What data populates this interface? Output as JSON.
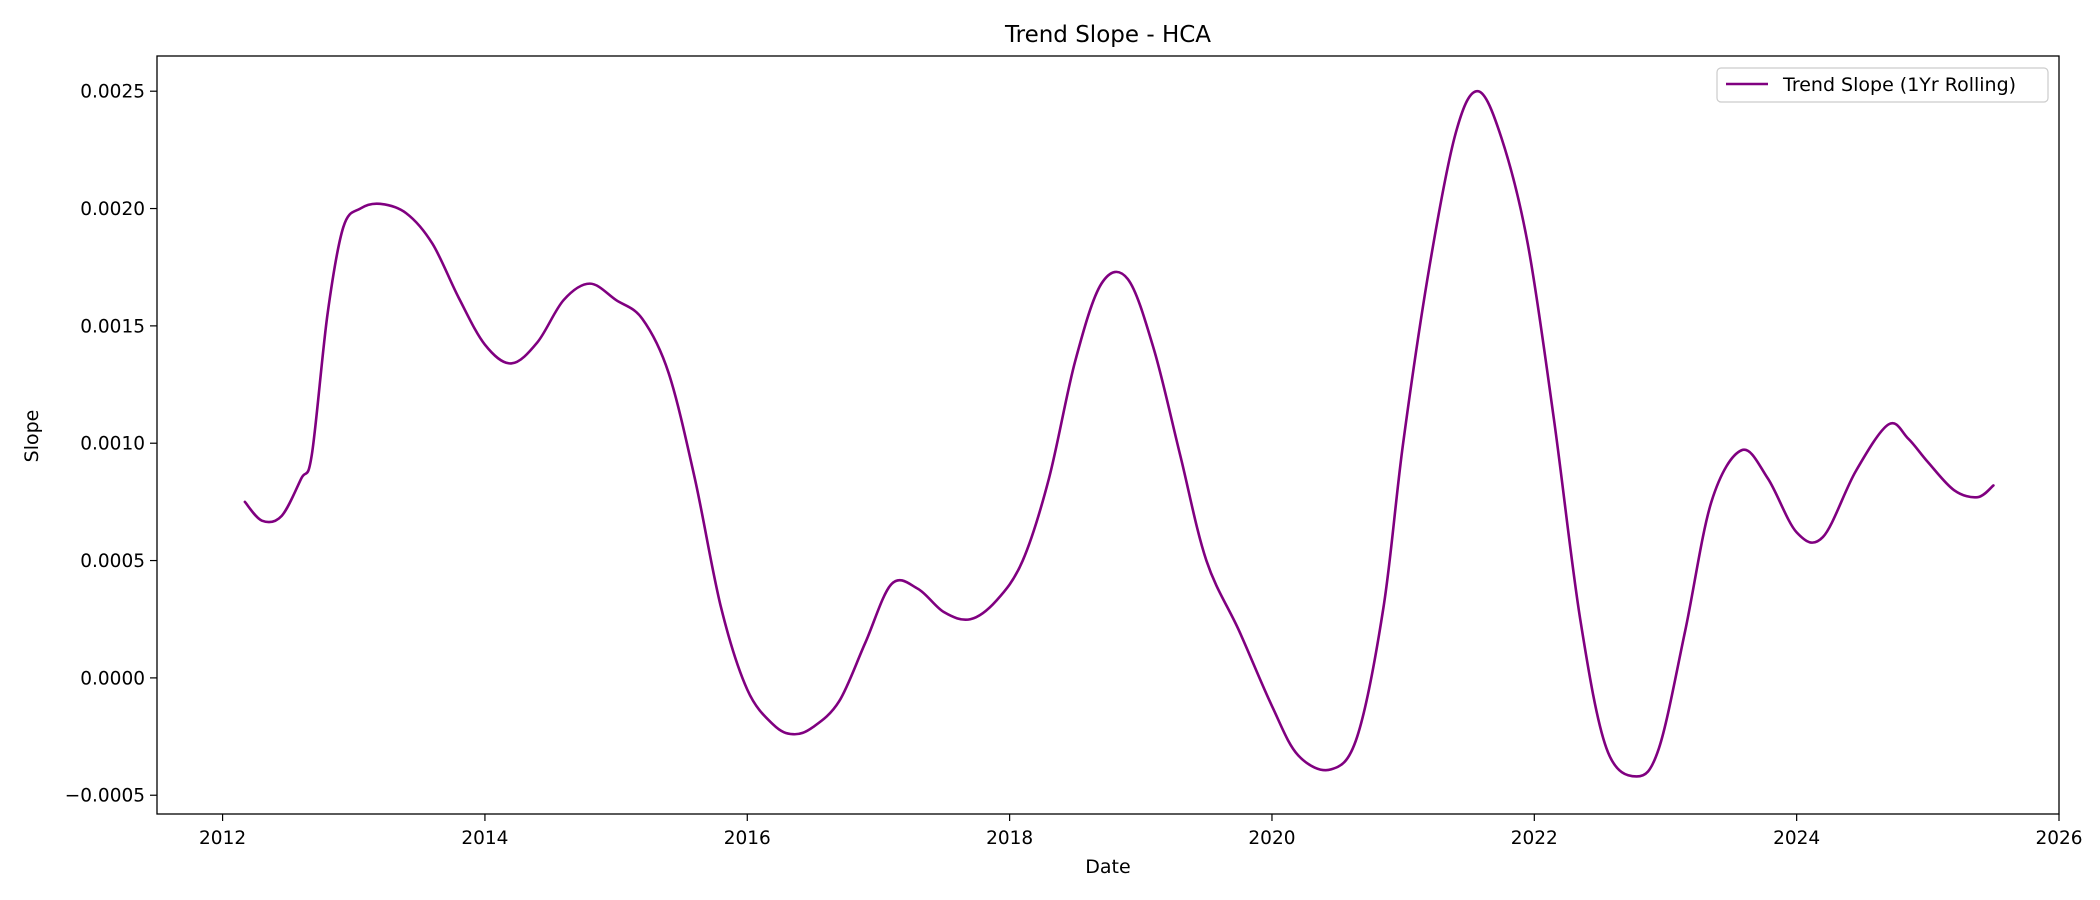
{
  "chart_data": {
    "type": "line",
    "title": "Trend Slope - HCA",
    "xlabel": "Date",
    "ylabel": "Slope",
    "xlim": [
      2011.5,
      2026.0
    ],
    "ylim": [
      -0.00058,
      0.00265
    ],
    "x_ticks": [
      {
        "value": 2012,
        "label": "2012"
      },
      {
        "value": 2014,
        "label": "2014"
      },
      {
        "value": 2016,
        "label": "2016"
      },
      {
        "value": 2018,
        "label": "2018"
      },
      {
        "value": 2020,
        "label": "2020"
      },
      {
        "value": 2022,
        "label": "2022"
      },
      {
        "value": 2024,
        "label": "2024"
      },
      {
        "value": 2026,
        "label": "2026"
      }
    ],
    "y_ticks": [
      {
        "value": -0.0005,
        "label": "−0.0005"
      },
      {
        "value": 0.0,
        "label": "0.0000"
      },
      {
        "value": 0.0005,
        "label": "0.0005"
      },
      {
        "value": 0.001,
        "label": "0.0010"
      },
      {
        "value": 0.0015,
        "label": "0.0015"
      },
      {
        "value": 0.002,
        "label": "0.0020"
      },
      {
        "value": 0.0025,
        "label": "0.0025"
      }
    ],
    "grid": false,
    "legend_position": "top-right",
    "series": [
      {
        "name": "Trend Slope (1Yr Rolling)",
        "color": "#800080",
        "points": [
          [
            2012.17,
            0.00075
          ],
          [
            2012.3,
            0.00067
          ],
          [
            2012.45,
            0.00069
          ],
          [
            2012.6,
            0.00085
          ],
          [
            2012.68,
            0.00095
          ],
          [
            2012.8,
            0.00155
          ],
          [
            2012.92,
            0.00192
          ],
          [
            2013.05,
            0.002
          ],
          [
            2013.2,
            0.00202
          ],
          [
            2013.4,
            0.00198
          ],
          [
            2013.6,
            0.00185
          ],
          [
            2013.8,
            0.00162
          ],
          [
            2014.0,
            0.00142
          ],
          [
            2014.2,
            0.00134
          ],
          [
            2014.4,
            0.00143
          ],
          [
            2014.6,
            0.00161
          ],
          [
            2014.8,
            0.00168
          ],
          [
            2015.0,
            0.00161
          ],
          [
            2015.2,
            0.00153
          ],
          [
            2015.4,
            0.0013
          ],
          [
            2015.6,
            0.00085
          ],
          [
            2015.8,
            0.0003
          ],
          [
            2016.0,
            -5e-05
          ],
          [
            2016.2,
            -0.0002
          ],
          [
            2016.35,
            -0.00024
          ],
          [
            2016.5,
            -0.00021
          ],
          [
            2016.7,
            -0.0001
          ],
          [
            2016.9,
            0.00015
          ],
          [
            2017.1,
            0.0004
          ],
          [
            2017.3,
            0.00038
          ],
          [
            2017.5,
            0.00028
          ],
          [
            2017.7,
            0.00025
          ],
          [
            2017.9,
            0.00033
          ],
          [
            2018.1,
            0.0005
          ],
          [
            2018.3,
            0.00085
          ],
          [
            2018.5,
            0.00135
          ],
          [
            2018.7,
            0.00168
          ],
          [
            2018.9,
            0.0017
          ],
          [
            2019.1,
            0.0014
          ],
          [
            2019.3,
            0.00095
          ],
          [
            2019.5,
            0.0005
          ],
          [
            2019.75,
            0.0002
          ],
          [
            2020.0,
            -0.00012
          ],
          [
            2020.2,
            -0.00033
          ],
          [
            2020.45,
            -0.00039
          ],
          [
            2020.65,
            -0.00025
          ],
          [
            2020.85,
            0.0003
          ],
          [
            2021.0,
            0.001
          ],
          [
            2021.2,
            0.00175
          ],
          [
            2021.4,
            0.00232
          ],
          [
            2021.57,
            0.0025
          ],
          [
            2021.75,
            0.0023
          ],
          [
            2021.95,
            0.00185
          ],
          [
            2022.15,
            0.0011
          ],
          [
            2022.35,
            0.00025
          ],
          [
            2022.55,
            -0.0003
          ],
          [
            2022.78,
            -0.00042
          ],
          [
            2022.95,
            -0.0003
          ],
          [
            2023.15,
            0.0002
          ],
          [
            2023.35,
            0.00075
          ],
          [
            2023.58,
            0.00097
          ],
          [
            2023.78,
            0.00085
          ],
          [
            2024.0,
            0.00062
          ],
          [
            2024.2,
            0.0006
          ],
          [
            2024.45,
            0.00088
          ],
          [
            2024.7,
            0.00108
          ],
          [
            2024.85,
            0.00102
          ],
          [
            2025.0,
            0.00092
          ],
          [
            2025.2,
            0.0008
          ],
          [
            2025.38,
            0.00077
          ],
          [
            2025.5,
            0.00082
          ]
        ]
      }
    ]
  }
}
